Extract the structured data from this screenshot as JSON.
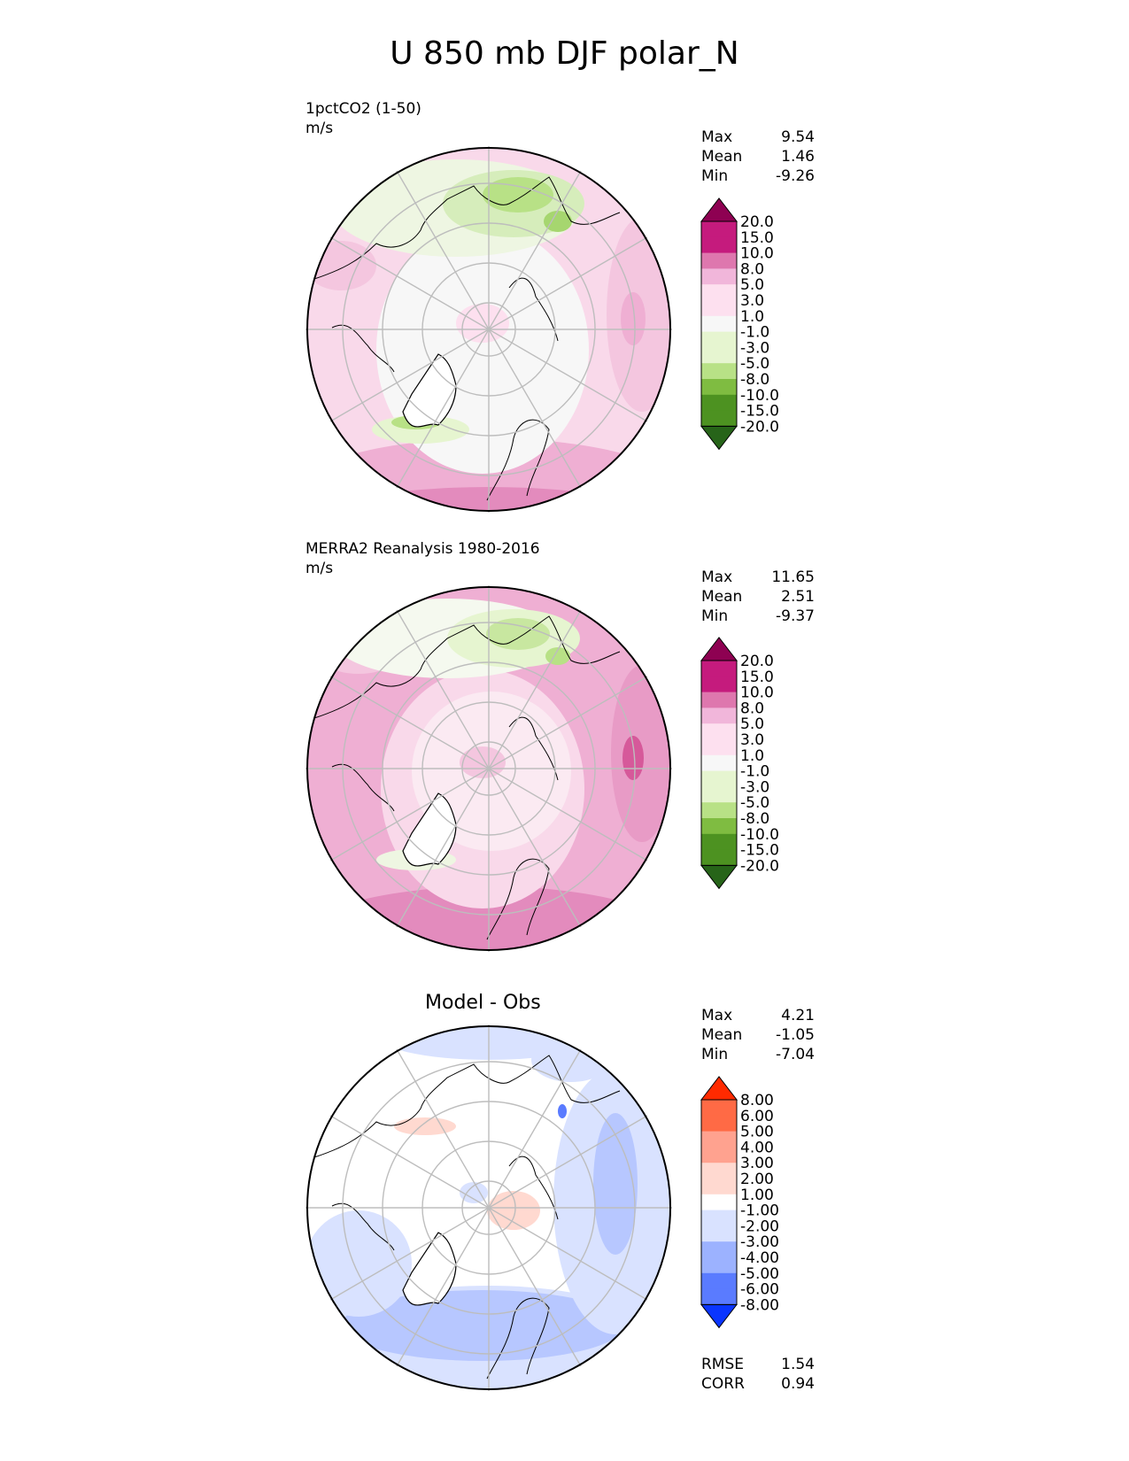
{
  "title": "U 850 mb DJF polar_N",
  "colors": {
    "diverging_pg": [
      "#276419",
      "#4d9221",
      "#7fbc41",
      "#b8e186",
      "#e6f5d0",
      "#f7f7f7",
      "#fde0ef",
      "#f1b6da",
      "#de77ae",
      "#c51b7d",
      "#8e0152"
    ],
    "diverging_rb": [
      "#0a35ff",
      "#5a7bff",
      "#9cb2ff",
      "#d9e2ff",
      "#ffffff",
      "#ffd9d0",
      "#ffa28f",
      "#ff6a45",
      "#ff2a00"
    ],
    "coastline": "#000000",
    "graticule": "#bdbdbd"
  },
  "panels": [
    {
      "name": "model",
      "label": "1pctCO2 (1-50)",
      "units": "m/s",
      "stats": {
        "max_label": "Max",
        "max": "9.54",
        "mean_label": "Mean",
        "mean": "1.46",
        "min_label": "Min",
        "min": "-9.26"
      },
      "colorbar_ticks": [
        "20.0",
        "15.0",
        "10.0",
        "8.0",
        "5.0",
        "3.0",
        "1.0",
        "-1.0",
        "-3.0",
        "-5.0",
        "-8.0",
        "-10.0",
        "-15.0",
        "-20.0"
      ]
    },
    {
      "name": "obs",
      "label": "MERRA2 Reanalysis 1980-2016",
      "units": "m/s",
      "stats": {
        "max_label": "Max",
        "max": "11.65",
        "mean_label": "Mean",
        "mean": "2.51",
        "min_label": "Min",
        "min": "-9.37"
      },
      "colorbar_ticks": [
        "20.0",
        "15.0",
        "10.0",
        "8.0",
        "5.0",
        "3.0",
        "1.0",
        "-1.0",
        "-3.0",
        "-5.0",
        "-8.0",
        "-10.0",
        "-15.0",
        "-20.0"
      ]
    },
    {
      "name": "diff",
      "label": "Model - Obs",
      "stats": {
        "max_label": "Max",
        "max": "4.21",
        "mean_label": "Mean",
        "mean": "-1.05",
        "min_label": "Min",
        "min": "-7.04",
        "rmse_label": "RMSE",
        "rmse": "1.54",
        "corr_label": "CORR",
        "corr": "0.94"
      },
      "colorbar_ticks": [
        "8.00",
        "6.00",
        "5.00",
        "4.00",
        "3.00",
        "2.00",
        "1.00",
        "-1.00",
        "-2.00",
        "-3.00",
        "-4.00",
        "-5.00",
        "-6.00",
        "-8.00"
      ]
    }
  ]
}
